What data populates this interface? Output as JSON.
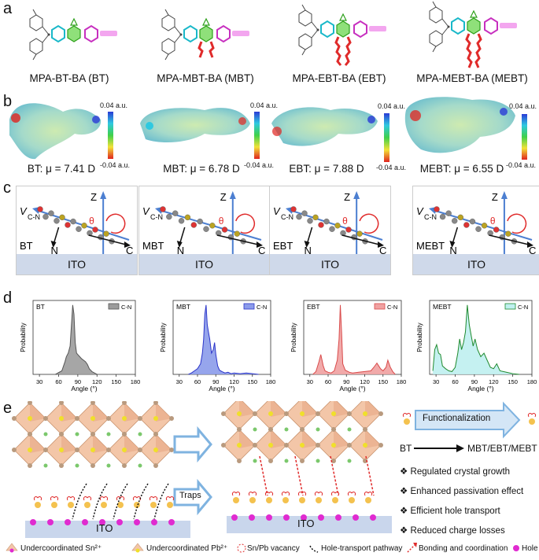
{
  "panels": {
    "a": {
      "label": "a",
      "molecules": [
        {
          "name": "MPA-BT-BA (BT)"
        },
        {
          "name": "MPA-MBT-BA (MBT)"
        },
        {
          "name": "MPA-EBT-BA (EBT)"
        },
        {
          "name": "MPA-MEBT-BA (MEBT)"
        }
      ],
      "acid_label": "COOH"
    },
    "b": {
      "label": "b",
      "cbar_top": "0.04 a.u.",
      "cbar_bottom": "-0.04 a.u.",
      "mu_labels": [
        "BT: μ = 7.41 D",
        "MBT: μ = 6.78 D",
        "EBT: μ = 7.88 D",
        "MEBT: μ = 6.55 D"
      ]
    },
    "c": {
      "label": "c",
      "boxes": [
        {
          "name": "BT"
        },
        {
          "name": "MBT"
        },
        {
          "name": "EBT"
        },
        {
          "name": "MEBT"
        }
      ],
      "z": "Z",
      "v_main": "V",
      "v_sub": "C-N",
      "n": "N",
      "cc": "C",
      "theta": "θ",
      "ito": "ITO"
    },
    "d": {
      "label": "d",
      "ylabel": "Probability",
      "xlabel": "Angle (°)",
      "legend": "C-N",
      "x_ticks": [
        "30",
        "60",
        "90",
        "120",
        "150",
        "180"
      ]
    },
    "e": {
      "label": "e",
      "traps": "Traps",
      "ito": "ITO",
      "functionalization": "Functionalization",
      "bt": "BT",
      "targets": "MBT/EBT/MEBT",
      "features": [
        "Regulated crystal growth",
        "Enhanced passivation effect",
        "Efficient hole transport",
        "Reduced charge losses"
      ],
      "bullet": "❖",
      "legend": [
        "Undercoordinated Sn²⁺",
        "Undercoordinated Pb²⁺",
        "Sn/Pb vacancy",
        "Hole-transport pathway",
        "Bonding and coordination",
        "Hole"
      ]
    }
  },
  "chart_data": [
    {
      "type": "area",
      "title": "BT",
      "xlabel": "Angle (°)",
      "ylabel": "Probability",
      "xlim": [
        20,
        180
      ],
      "x_ticks": [
        30,
        60,
        90,
        120,
        150,
        180
      ],
      "series": [
        {
          "name": "C-N",
          "color": "#555555",
          "x": [
            55,
            65,
            70,
            72,
            75,
            78,
            80,
            82,
            84,
            86,
            88,
            90,
            93,
            96,
            99,
            102,
            105,
            108,
            112,
            116,
            120
          ],
          "y": [
            0,
            0.05,
            0.18,
            0.25,
            0.3,
            0.4,
            0.7,
            0.98,
            0.85,
            0.45,
            0.3,
            0.28,
            0.25,
            0.22,
            0.2,
            0.18,
            0.14,
            0.08,
            0.04,
            0.02,
            0
          ]
        }
      ]
    },
    {
      "type": "area",
      "title": "MBT",
      "xlabel": "Angle (°)",
      "ylabel": "Probability",
      "xlim": [
        20,
        180
      ],
      "x_ticks": [
        30,
        60,
        90,
        120,
        150,
        180
      ],
      "series": [
        {
          "name": "C-N",
          "color": "#2b35c9",
          "x": [
            45,
            50,
            55,
            60,
            65,
            68,
            70,
            72,
            74,
            76,
            78,
            80,
            83,
            86,
            88,
            90,
            93,
            96,
            100,
            105,
            110,
            115,
            120,
            130,
            140,
            150,
            160
          ],
          "y": [
            0,
            0.02,
            0.05,
            0.08,
            0.15,
            0.3,
            0.5,
            0.85,
            0.98,
            0.7,
            0.6,
            0.5,
            0.3,
            0.35,
            0.45,
            0.28,
            0.12,
            0.06,
            0.04,
            0.02,
            0.03,
            0.01,
            0.02,
            0.01,
            0.02,
            0.01,
            0
          ]
        }
      ]
    },
    {
      "type": "area",
      "title": "EBT",
      "xlabel": "Angle (°)",
      "ylabel": "Probability",
      "xlim": [
        20,
        180
      ],
      "x_ticks": [
        30,
        60,
        90,
        120,
        150,
        180
      ],
      "series": [
        {
          "name": "C-N",
          "color": "#d94b4b",
          "x": [
            35,
            40,
            45,
            48,
            50,
            52,
            55,
            60,
            65,
            70,
            75,
            78,
            80,
            82,
            84,
            88,
            95,
            100,
            110,
            120,
            130,
            135,
            140,
            143,
            146,
            150,
            155,
            158,
            162,
            166,
            170
          ],
          "y": [
            0,
            0.04,
            0.18,
            0.28,
            0.2,
            0.12,
            0.05,
            0.03,
            0.02,
            0.05,
            0.2,
            0.5,
            0.98,
            0.6,
            0.15,
            0.06,
            0.03,
            0.02,
            0.03,
            0.04,
            0.05,
            0.1,
            0.16,
            0.12,
            0.08,
            0.05,
            0.1,
            0.2,
            0.1,
            0.04,
            0
          ]
        }
      ]
    },
    {
      "type": "area",
      "title": "MEBT",
      "xlabel": "Angle (°)",
      "ylabel": "Probability",
      "xlim": [
        20,
        180
      ],
      "x_ticks": [
        30,
        60,
        90,
        120,
        150,
        180
      ],
      "series": [
        {
          "name": "C-N",
          "color": "#1f8a2e",
          "x": [
            25,
            28,
            31,
            34,
            37,
            40,
            45,
            50,
            55,
            60,
            64,
            67,
            70,
            73,
            76,
            79,
            82,
            85,
            88,
            91,
            95,
            100,
            105,
            110,
            115,
            120,
            125,
            130,
            140,
            150,
            160
          ],
          "y": [
            0.05,
            0.35,
            0.42,
            0.3,
            0.28,
            0.12,
            0.08,
            0.05,
            0.04,
            0.1,
            0.3,
            0.5,
            0.35,
            0.45,
            0.6,
            0.98,
            0.7,
            0.55,
            0.4,
            0.5,
            0.35,
            0.25,
            0.3,
            0.2,
            0.1,
            0.08,
            0.15,
            0.05,
            0.03,
            0.01,
            0
          ]
        }
      ]
    }
  ]
}
